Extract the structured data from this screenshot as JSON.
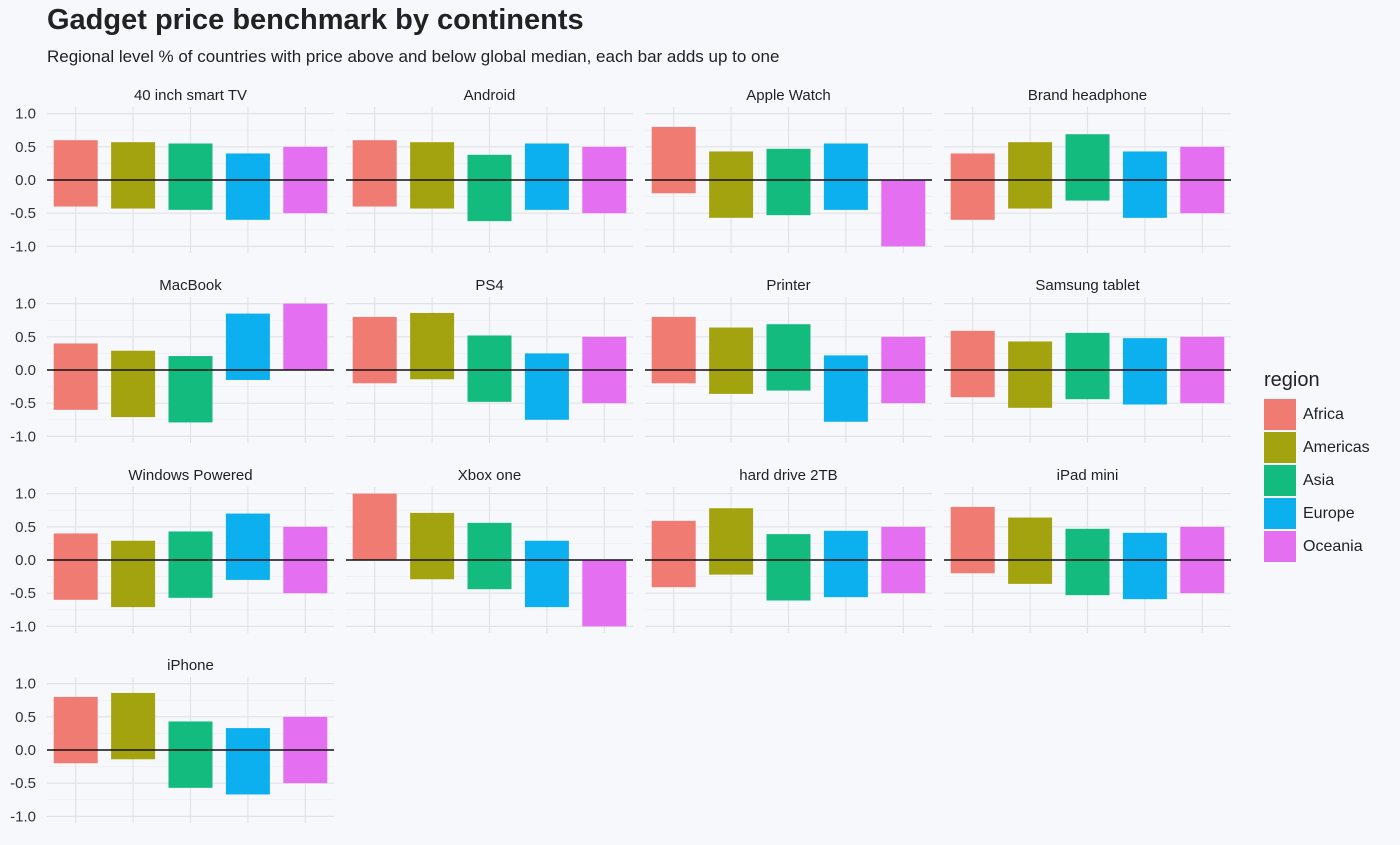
{
  "title": "Gadget price benchmark by continents",
  "subtitle": "Regional level % of countries with price above and below global median, each bar adds up to one",
  "legend": {
    "title": "region",
    "items": [
      {
        "label": "Africa",
        "color": "#f07b73"
      },
      {
        "label": "Americas",
        "color": "#a3a30f"
      },
      {
        "label": "Asia",
        "color": "#13bb7f"
      },
      {
        "label": "Europe",
        "color": "#0cb0ef"
      },
      {
        "label": "Oceania",
        "color": "#e46ff0"
      }
    ]
  },
  "chart_data": {
    "type": "bar",
    "layout": "facet grid, 4 columns, diverging bars around zero",
    "categories": [
      "Africa",
      "Americas",
      "Asia",
      "Europe",
      "Oceania"
    ],
    "ylim": [
      -1.1,
      1.1
    ],
    "yticks": [
      1.0,
      0.5,
      0.0,
      -0.5,
      -1.0
    ],
    "ytick_labels": [
      "1.0",
      "0.5",
      "0.0",
      "-0.5",
      "-1.0"
    ],
    "grid": true,
    "legend_position": "right",
    "panels": [
      {
        "name": "40 inch smart TV",
        "above": [
          0.6,
          0.57,
          0.55,
          0.4,
          0.5
        ],
        "below": [
          -0.4,
          -0.43,
          -0.45,
          -0.6,
          -0.5
        ]
      },
      {
        "name": "Android",
        "above": [
          0.6,
          0.57,
          0.38,
          0.55,
          0.5
        ],
        "below": [
          -0.4,
          -0.43,
          -0.62,
          -0.45,
          -0.5
        ]
      },
      {
        "name": "Apple Watch",
        "above": [
          0.8,
          0.43,
          0.47,
          0.55,
          0.0
        ],
        "below": [
          -0.2,
          -0.57,
          -0.53,
          -0.45,
          -1.0
        ]
      },
      {
        "name": "Brand headphone",
        "above": [
          0.4,
          0.57,
          0.69,
          0.43,
          0.5
        ],
        "below": [
          -0.6,
          -0.43,
          -0.31,
          -0.57,
          -0.5
        ]
      },
      {
        "name": "MacBook",
        "above": [
          0.4,
          0.29,
          0.21,
          0.85,
          1.0
        ],
        "below": [
          -0.6,
          -0.71,
          -0.79,
          -0.15,
          0.0
        ]
      },
      {
        "name": "PS4",
        "above": [
          0.8,
          0.86,
          0.52,
          0.25,
          0.5
        ],
        "below": [
          -0.2,
          -0.14,
          -0.48,
          -0.75,
          -0.5
        ]
      },
      {
        "name": "Printer",
        "above": [
          0.8,
          0.64,
          0.69,
          0.22,
          0.5
        ],
        "below": [
          -0.2,
          -0.36,
          -0.31,
          -0.78,
          -0.5
        ]
      },
      {
        "name": "Samsung tablet",
        "above": [
          0.59,
          0.43,
          0.56,
          0.48,
          0.5
        ],
        "below": [
          -0.41,
          -0.57,
          -0.44,
          -0.52,
          -0.5
        ]
      },
      {
        "name": "Windows Powered",
        "above": [
          0.4,
          0.29,
          0.43,
          0.7,
          0.5
        ],
        "below": [
          -0.6,
          -0.71,
          -0.57,
          -0.3,
          -0.5
        ]
      },
      {
        "name": "Xbox one",
        "above": [
          1.0,
          0.71,
          0.56,
          0.29,
          0.0
        ],
        "below": [
          0.0,
          -0.29,
          -0.44,
          -0.71,
          -1.0
        ]
      },
      {
        "name": "hard drive 2TB",
        "above": [
          0.59,
          0.78,
          0.39,
          0.44,
          0.5
        ],
        "below": [
          -0.41,
          -0.22,
          -0.61,
          -0.56,
          -0.5
        ]
      },
      {
        "name": "iPad mini",
        "above": [
          0.8,
          0.64,
          0.47,
          0.41,
          0.5
        ],
        "below": [
          -0.2,
          -0.36,
          -0.53,
          -0.59,
          -0.5
        ]
      },
      {
        "name": "iPhone",
        "above": [
          0.8,
          0.86,
          0.43,
          0.33,
          0.5
        ],
        "below": [
          -0.2,
          -0.14,
          -0.57,
          -0.67,
          -0.5
        ]
      }
    ]
  }
}
